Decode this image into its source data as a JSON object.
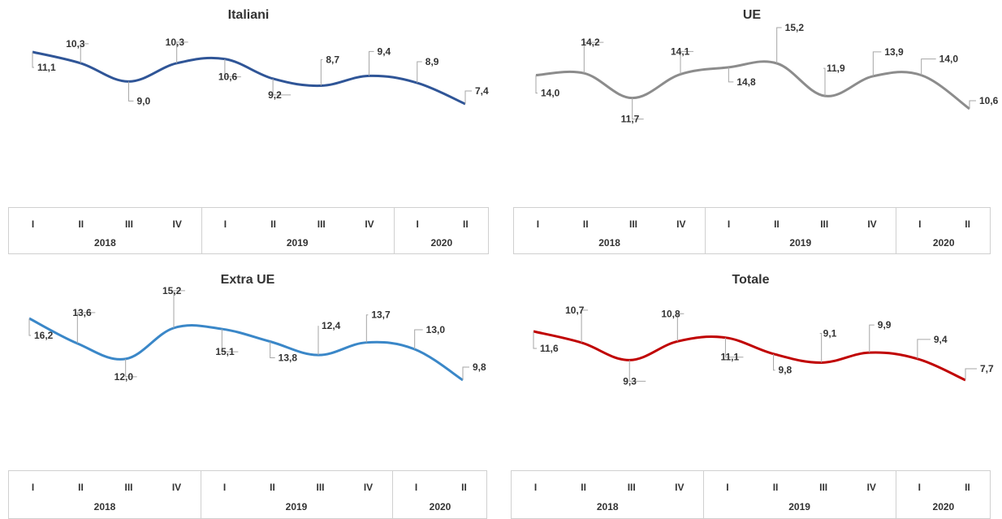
{
  "axis": {
    "quarters": [
      "I",
      "II",
      "III",
      "IV",
      "I",
      "II",
      "III",
      "IV",
      "I",
      "II"
    ],
    "years": [
      {
        "label": "2018",
        "span": 4
      },
      {
        "label": "2019",
        "span": 4
      },
      {
        "label": "2020",
        "span": 2
      }
    ]
  },
  "chart_data": [
    {
      "type": "line",
      "title": "Italiani",
      "color": "#2f5597",
      "categories": [
        "2018 I",
        "2018 II",
        "2018 III",
        "2018 IV",
        "2019 I",
        "2019 II",
        "2019 III",
        "2019 IV",
        "2020 I",
        "2020 II"
      ],
      "values": [
        11.1,
        10.3,
        9.0,
        10.3,
        10.6,
        9.2,
        8.7,
        9.4,
        8.9,
        7.4
      ],
      "labels": [
        "11,1",
        "10,3",
        "9,0",
        "10,3",
        "10,6",
        "9,2",
        "8,7",
        "9,4",
        "8,9",
        "7,4"
      ]
    },
    {
      "type": "line",
      "title": "UE",
      "color": "#8c8c8c",
      "categories": [
        "2018 I",
        "2018 II",
        "2018 III",
        "2018 IV",
        "2019 I",
        "2019 II",
        "2019 III",
        "2019 IV",
        "2020 I",
        "2020 II"
      ],
      "values": [
        14.0,
        14.2,
        11.7,
        14.1,
        14.8,
        15.2,
        11.9,
        13.9,
        14.0,
        10.6
      ],
      "labels": [
        "14,0",
        "14,2",
        "11,7",
        "14,1",
        "14,8",
        "15,2",
        "11,9",
        "13,9",
        "14,0",
        "10,6"
      ]
    },
    {
      "type": "line",
      "title": "Extra UE",
      "color": "#3a87c8",
      "categories": [
        "2018 I",
        "2018 II",
        "2018 III",
        "2018 IV",
        "2019 I",
        "2019 II",
        "2019 III",
        "2019 IV",
        "2020 I",
        "2020 II"
      ],
      "values": [
        16.2,
        13.6,
        12.0,
        15.2,
        15.1,
        13.8,
        12.4,
        13.7,
        13.0,
        9.8
      ],
      "labels": [
        "16,2",
        "13,6",
        "12,0",
        "15,2",
        "15,1",
        "13,8",
        "12,4",
        "13,7",
        "13,0",
        "9,8"
      ]
    },
    {
      "type": "line",
      "title": "Totale",
      "color": "#c00000",
      "categories": [
        "2018 I",
        "2018 II",
        "2018 III",
        "2018 IV",
        "2019 I",
        "2019 II",
        "2019 III",
        "2019 IV",
        "2020 I",
        "2020 II"
      ],
      "values": [
        11.6,
        10.7,
        9.3,
        10.8,
        11.1,
        9.8,
        9.1,
        9.9,
        9.4,
        7.7
      ],
      "labels": [
        "11,6",
        "10,7",
        "9,3",
        "10,8",
        "11,1",
        "9,8",
        "9,1",
        "9,9",
        "9,4",
        "7,7"
      ]
    }
  ]
}
